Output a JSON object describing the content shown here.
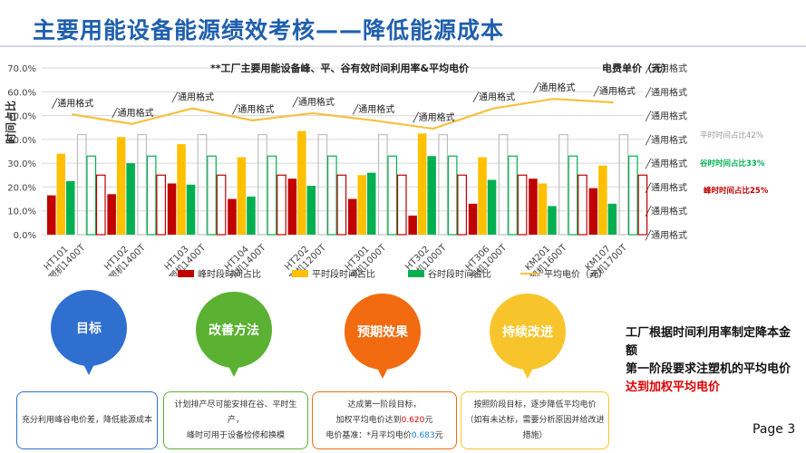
{
  "page": {
    "title": "主要用能设备能源绩效考核——降低能源成本",
    "page_number": "Page 3"
  },
  "chart_data": {
    "type": "bar",
    "title": "**工厂主要用能设备峰、平、谷有效时间利用率&平均电价",
    "ylabel": "时间占比",
    "y2label": "电费单价（元）",
    "ylim": [
      0,
      70
    ],
    "yticks": [
      "0.0%",
      "10.0%",
      "20.0%",
      "30.0%",
      "40.0%",
      "50.0%",
      "60.0%",
      "70.0%"
    ],
    "y2_tick_label": "通用格式",
    "categories": [
      "HT101\n注塑机1400T",
      "HT102\n注塑机1400T",
      "HT103\n注塑机1400T",
      "HT104\n注塑机1400T",
      "HT202\n注塑机1200T",
      "HT301\n注塑机1000T",
      "HT302\n注塑机1000T",
      "HT306\n注塑机1000T",
      "KM201\n注塑机1600T",
      "KM107\n注塑机1700T"
    ],
    "series": [
      {
        "name": "峰时段时间占比",
        "type": "bar",
        "color": "#c00000",
        "values": [
          16.5,
          17.0,
          21.5,
          15.0,
          23.5,
          15.0,
          8.0,
          13.0,
          23.5,
          19.5
        ]
      },
      {
        "name": "平时段时间占比",
        "type": "bar",
        "color": "#ffc000",
        "values": [
          34.0,
          41.0,
          38.0,
          32.5,
          43.5,
          25.0,
          42.5,
          32.5,
          21.5,
          29.0
        ]
      },
      {
        "name": "谷时段时间占比",
        "type": "bar",
        "color": "#00b050",
        "values": [
          22.5,
          30.0,
          21.0,
          16.0,
          20.5,
          26.0,
          33.0,
          23.0,
          12.0,
          13.0
        ]
      },
      {
        "name": "平均电价（元）",
        "type": "line",
        "color": "#f6c141",
        "values": [
          50.5,
          46.5,
          53.0,
          48.0,
          51.0,
          48.0,
          44.5,
          53.0,
          57.0,
          55.5
        ]
      }
    ],
    "reference_bars": [
      {
        "label": "平时时间占比42%",
        "value": 42,
        "color": "#bfbfbf"
      },
      {
        "label": "谷时时间占比33%",
        "value": 33,
        "color": "#00b050"
      },
      {
        "name": "峰时时间占比25%",
        "label": "峰时时间占比25%",
        "value": 25,
        "color": "#c00000"
      }
    ],
    "data_label": "通用格式",
    "legend_position": "bottom",
    "grid": true
  },
  "goals": [
    {
      "title": "目标",
      "color": "#2f6fd0",
      "text": [
        "充分利用峰谷电价差，降低能源成本"
      ]
    },
    {
      "title": "改善方法",
      "color": "#5ab132",
      "text": [
        "计划排产尽可能安排在谷、平时生产，",
        "峰时可用于设备检修和换模"
      ]
    },
    {
      "title": "预期效果",
      "color": "#f26b10",
      "text": [
        "达成第一阶段目标，",
        "加权平均电价达到",
        "0.620",
        "元",
        "电价基准：*月平均电价",
        "0.683",
        "元"
      ]
    },
    {
      "title": "持续改进",
      "color": "#f7c52b",
      "text": [
        "按照阶段目标，逐步降低平均电价",
        "（如有未达标，需要分析原因并给改进",
        "措施）"
      ]
    }
  ],
  "note": {
    "line1": "工厂根据时间利用率制定降本金额",
    "line2": "第一阶段要求注塑机的平均电价",
    "highlight": "达到加权平均电价"
  }
}
